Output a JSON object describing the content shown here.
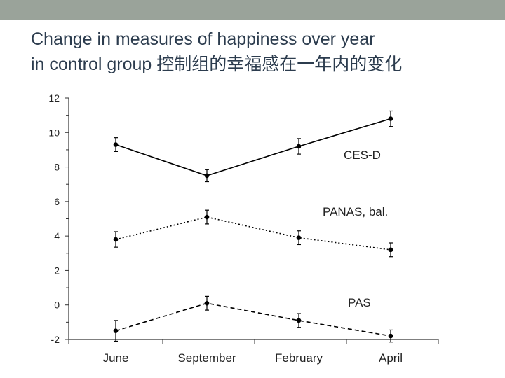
{
  "slide": {
    "title_line1": "Change in measures of happiness over year",
    "title_line2": "in control group   控制组的幸福感在一年内的变化"
  },
  "chart_data": {
    "type": "line",
    "categories": [
      "June",
      "September",
      "February",
      "April"
    ],
    "ylim": [
      -2,
      12
    ],
    "yticks": [
      "12",
      "10",
      "8",
      "6",
      "4",
      "2",
      "0",
      "-2"
    ],
    "grid": false,
    "legend": "none",
    "series": [
      {
        "name": "CES-D",
        "values": [
          9.3,
          7.5,
          9.2,
          10.8
        ],
        "errors": [
          0.4,
          0.35,
          0.45,
          0.45
        ],
        "line_style": "solid"
      },
      {
        "name": "PANAS, bal.",
        "values": [
          3.8,
          5.1,
          3.9,
          3.2
        ],
        "errors": [
          0.45,
          0.4,
          0.4,
          0.4
        ],
        "line_style": "dotted"
      },
      {
        "name": "PAS",
        "values": [
          -1.5,
          0.1,
          -0.9,
          -1.8
        ],
        "errors": [
          0.6,
          0.4,
          0.4,
          0.35
        ],
        "line_style": "dashed"
      }
    ]
  }
}
